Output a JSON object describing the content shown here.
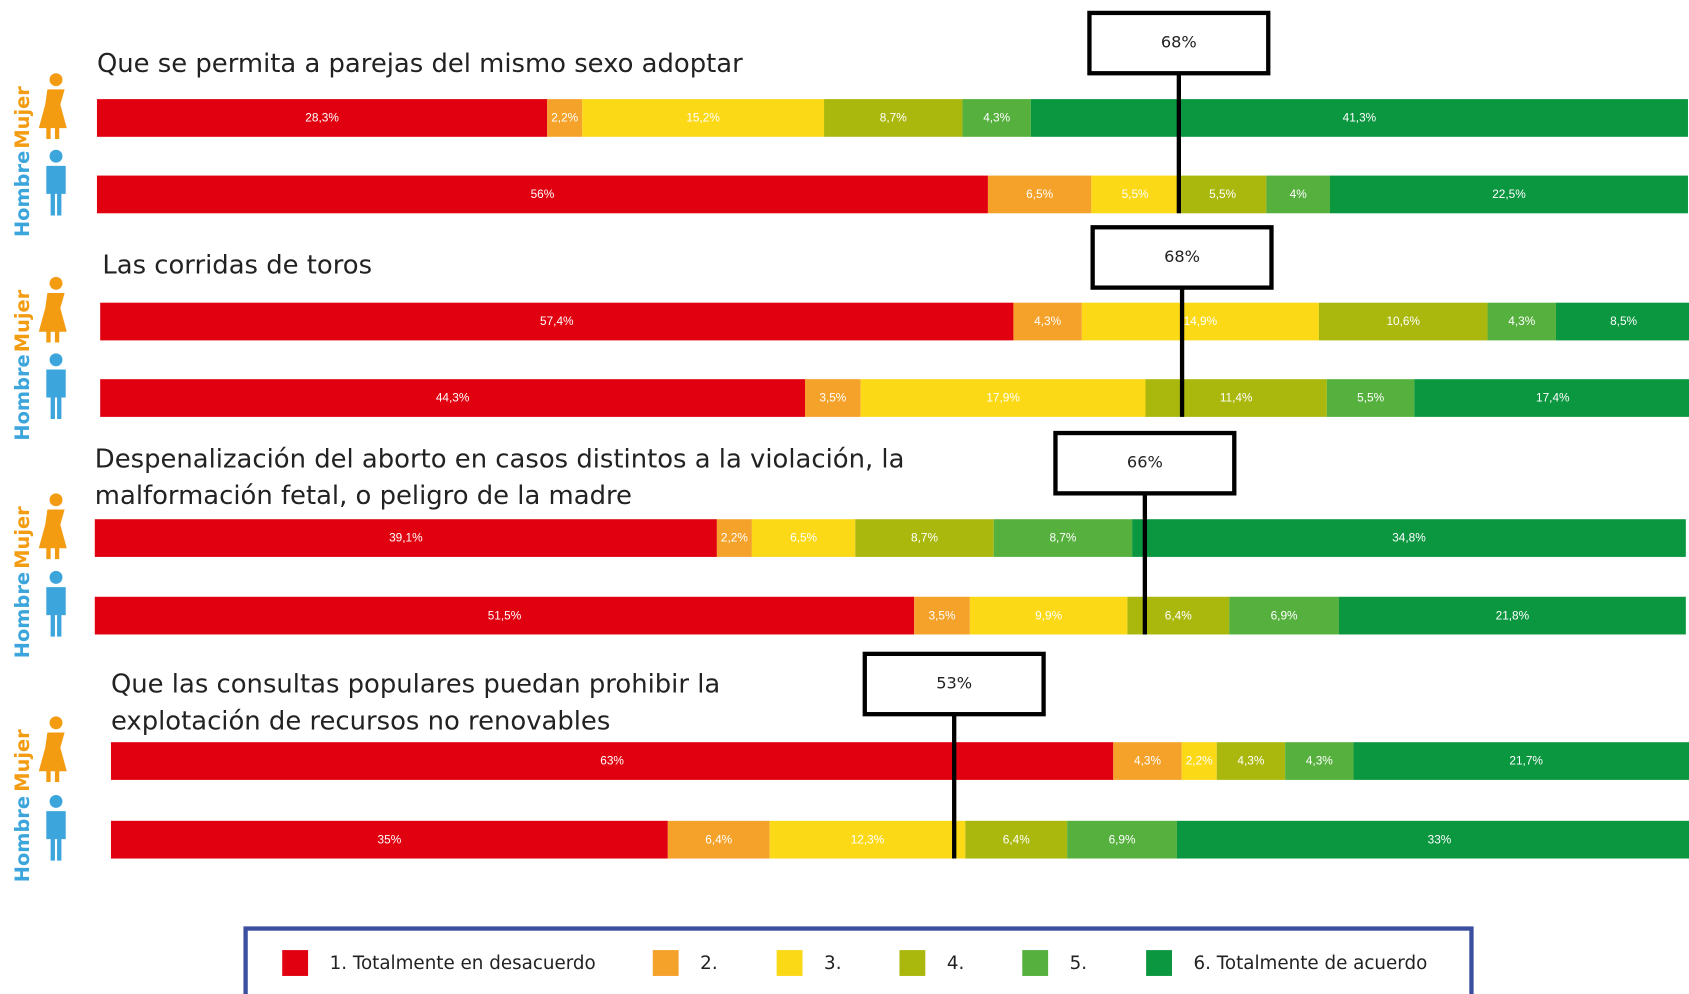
{
  "chart_data": [
    {
      "type": "bar",
      "title": "Que se permita a parejas del mismo sexo adoptar",
      "xlim": [
        0,
        100
      ],
      "series": [
        {
          "name": "Mujer",
          "color": "#f39c12",
          "values": [
            28.3,
            2.2,
            15.2,
            8.7,
            4.3,
            41.3
          ],
          "value_labels": [
            "28,3%",
            "2,2%",
            "15,2%",
            "8,7%",
            "4,3%",
            "41,3%"
          ]
        },
        {
          "name": "Hombre",
          "color": "#3ba5dc",
          "values": [
            56,
            6.5,
            5.5,
            5.5,
            4,
            22.5
          ],
          "value_labels": [
            "56%",
            "6,5%",
            "5,5%",
            "5,5%",
            "4%",
            "22,5%"
          ]
        }
      ],
      "annotation": {
        "value": 68,
        "label": "68%"
      }
    },
    {
      "type": "bar",
      "title": "Las corridas de toros",
      "xlim": [
        0,
        100
      ],
      "series": [
        {
          "name": "Mujer",
          "color": "#f39c12",
          "values": [
            57.4,
            4.3,
            14.9,
            10.6,
            4.3,
            8.5
          ],
          "value_labels": [
            "57,4%",
            "4,3%",
            "14,9%",
            "10,6%",
            "4,3%",
            "8,5%"
          ]
        },
        {
          "name": "Hombre",
          "color": "#3ba5dc",
          "values": [
            44.3,
            3.5,
            17.9,
            11.4,
            5.5,
            17.4
          ],
          "value_labels": [
            "44,3%",
            "3,5%",
            "17,9%",
            "11,4%",
            "5,5%",
            "17,4%"
          ]
        }
      ],
      "annotation": {
        "value": 68,
        "label": "68%"
      }
    },
    {
      "type": "bar",
      "title": "Despenalización del aborto en casos distintos a la violación, la malformación fetal, o peligro de la madre",
      "xlim": [
        0,
        100
      ],
      "series": [
        {
          "name": "Mujer",
          "color": "#f39c12",
          "values": [
            39.1,
            2.2,
            6.5,
            8.7,
            8.7,
            34.8
          ],
          "value_labels": [
            "39,1%",
            "2,2%",
            "6,5%",
            "8,7%",
            "8,7%",
            "34,8%"
          ]
        },
        {
          "name": "Hombre",
          "color": "#3ba5dc",
          "values": [
            51.5,
            3.5,
            9.9,
            6.4,
            6.9,
            21.8
          ],
          "value_labels": [
            "51,5%",
            "3,5%",
            "9,9%",
            "6,4%",
            "6,9%",
            "21,8%"
          ]
        }
      ],
      "annotation": {
        "value": 66,
        "label": "66%"
      }
    },
    {
      "type": "bar",
      "title": "Que las consultas populares puedan prohibir la explotación de recursos no renovables",
      "xlim": [
        0,
        100
      ],
      "series": [
        {
          "name": "Mujer",
          "color": "#f39c12",
          "values": [
            63,
            4.3,
            2.2,
            4.3,
            4.3,
            21.7
          ],
          "value_labels": [
            "63%",
            "4,3%",
            "2,2%",
            "4,3%",
            "4,3%",
            "21,7%"
          ]
        },
        {
          "name": "Hombre",
          "color": "#3ba5dc",
          "values": [
            35,
            6.4,
            12.3,
            6.4,
            6.9,
            33
          ],
          "value_labels": [
            "35%",
            "6,4%",
            "12,3%",
            "6,4%",
            "6,9%",
            "33%"
          ]
        }
      ],
      "annotation": {
        "value": 53,
        "label": "53%"
      }
    }
  ],
  "legend": {
    "labels": [
      "1. Totalmente en desacuerdo",
      "2.",
      "3.",
      "4.",
      "5.",
      "6. Totalmente de acuerdo"
    ],
    "colors": [
      "#e0000f",
      "#f4a22a",
      "#fcd916",
      "#aab80d",
      "#56b03d",
      "#0b9640"
    ]
  }
}
